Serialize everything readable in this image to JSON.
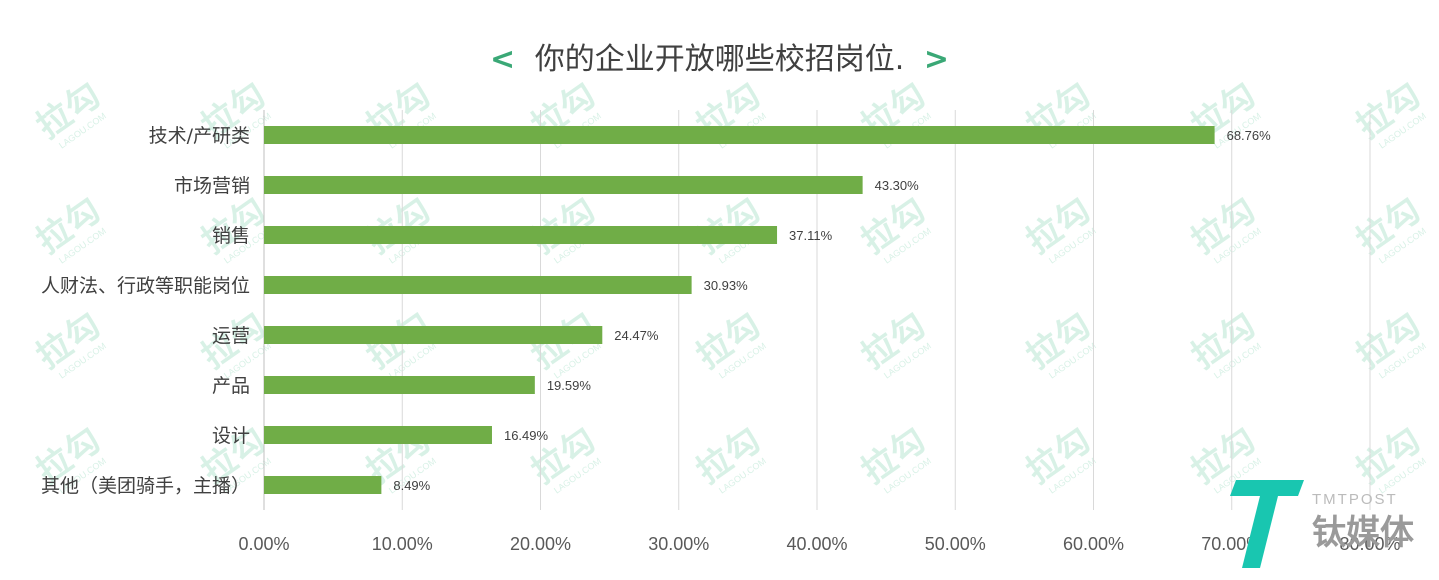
{
  "chart_data": {
    "type": "bar",
    "orientation": "horizontal",
    "title": "你的企业开放哪些校招岗位.",
    "title_brackets": [
      "<",
      ">"
    ],
    "categories": [
      "技术/产研类",
      "市场营销",
      "销售",
      "人财法、行政等职能岗位",
      "运营",
      "产品",
      "设计",
      "其他（美团骑手，主播）"
    ],
    "values": [
      68.76,
      43.3,
      37.11,
      30.93,
      24.47,
      19.59,
      16.49,
      8.49
    ],
    "value_labels": [
      "68.76%",
      "43.30%",
      "37.11%",
      "30.93%",
      "24.47%",
      "19.59%",
      "16.49%",
      "8.49%"
    ],
    "xlim": [
      0,
      80
    ],
    "xticks": [
      0,
      10,
      20,
      30,
      40,
      50,
      60,
      70,
      80
    ],
    "xtick_labels": [
      "0.00%",
      "10.00%",
      "20.00%",
      "30.00%",
      "40.00%",
      "50.00%",
      "60.00%",
      "70.00%",
      "80.00%"
    ],
    "grid": true,
    "xlabel": "",
    "ylabel": ""
  },
  "colors": {
    "bar": "#70ad47",
    "grid": "#d9d9d9",
    "bracket": "#3aa876",
    "text": "#404040",
    "logo_accent": "#19c6b0",
    "watermark": "#b9e6d3"
  },
  "watermark": {
    "text": "拉勾",
    "subtext": "LAGOU.COM"
  },
  "logo": {
    "mark": "T",
    "latin": "TMTPOST",
    "cn": "钛媒体"
  }
}
